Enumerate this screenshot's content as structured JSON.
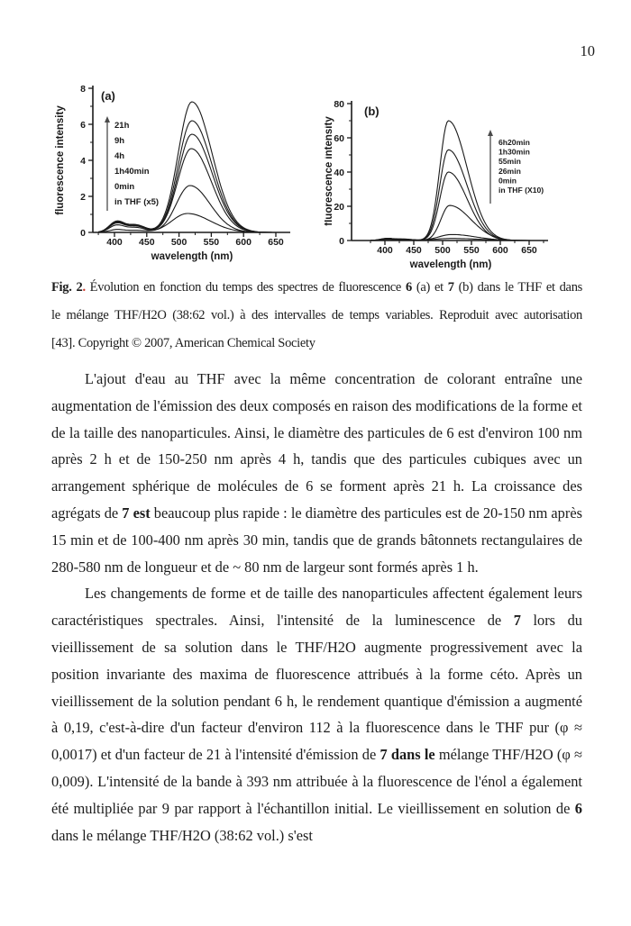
{
  "page": {
    "number": "10"
  },
  "figure": {
    "caption_lines": [
      {
        "segments": [
          {
            "t": "Fig. 2",
            "b": true
          },
          {
            "t": ".",
            "b": true,
            "c": "#cc3226"
          },
          {
            "t": " Évolution en fonction du temps des spectres de fluorescence "
          },
          {
            "t": "6",
            "b": true
          },
          {
            "t": " (a) et "
          },
          {
            "t": "7",
            "b": true
          },
          {
            "t": " (b) dans le THF et dans"
          }
        ]
      },
      {
        "segments": [
          {
            "t": "le mélange THF/H2O (38:62 vol.) à des intervalles de temps variables. Reproduit avec autorisation"
          }
        ]
      },
      {
        "segments": [
          {
            "t": "[43]. Copyright © 2007, American Chemical Society"
          }
        ]
      }
    ]
  },
  "chart_data": [
    {
      "type": "line",
      "panel_label": "(a)",
      "xlabel": "wavelength (nm)",
      "ylabel": "fluorescence intensity",
      "xlim": [
        375,
        672
      ],
      "ylim": [
        0,
        8
      ],
      "xticks": [
        400,
        450,
        500,
        550,
        600,
        650
      ],
      "yticks": [
        0,
        2,
        4,
        6,
        8
      ],
      "yminor": [
        1,
        3,
        5,
        7
      ],
      "legend": [
        "21h",
        "9h",
        "4h",
        "1h40min",
        "0min",
        "in THF (x5)"
      ],
      "legend_position": "inside-left",
      "legend_arrow": "up",
      "grid": false,
      "line_color": "#1a1a1a",
      "sigma_left_nm": 30,
      "sigma_right_nm": 44,
      "series": [
        {
          "name": "21h",
          "peak_nm": 520,
          "peak_intensity": 7.25,
          "bump_405": 0.58
        },
        {
          "name": "9h",
          "peak_nm": 520,
          "peak_intensity": 6.2,
          "bump_405": 0.54
        },
        {
          "name": "4h",
          "peak_nm": 520,
          "peak_intensity": 5.45,
          "bump_405": 0.5
        },
        {
          "name": "1h40min",
          "peak_nm": 519,
          "peak_intensity": 4.65,
          "bump_405": 0.48
        },
        {
          "name": "0min",
          "peak_nm": 517,
          "peak_intensity": 2.6,
          "bump_405": 0.38
        },
        {
          "name": "in THF (x5)",
          "peak_nm": 513,
          "peak_intensity": 1.05,
          "bump_405": 0.15,
          "sigma_left_nm": 34,
          "sigma_right_nm": 50
        }
      ]
    },
    {
      "type": "line",
      "panel_label": "(b)",
      "xlabel": "wavelength (nm)",
      "ylabel": "fluorescence intensity",
      "xlim": [
        375,
        680
      ],
      "ylim": [
        0,
        80
      ],
      "xticks": [
        400,
        450,
        500,
        550,
        600,
        650
      ],
      "yticks": [
        0,
        20,
        40,
        60,
        80
      ],
      "yminor": [
        10,
        30,
        50,
        70
      ],
      "legend": [
        "6h20min",
        "1h30min",
        "55min",
        "26min",
        "0min",
        "in THF (X10)"
      ],
      "legend_position": "inside-right",
      "legend_arrow": "up",
      "grid": false,
      "line_color": "#1a1a1a",
      "sigma_left_nm": 21,
      "sigma_right_nm": 46,
      "series": [
        {
          "name": "6h20min",
          "peak_nm": 510,
          "peak_intensity": 70,
          "bump_405": 1.2
        },
        {
          "name": "1h30min",
          "peak_nm": 510,
          "peak_intensity": 53,
          "bump_405": 1.1
        },
        {
          "name": "55min",
          "peak_nm": 510,
          "peak_intensity": 40,
          "bump_405": 1.0
        },
        {
          "name": "26min",
          "peak_nm": 512,
          "peak_intensity": 20.5,
          "bump_405": 0.9,
          "sigma_right_nm": 52
        },
        {
          "name": "0min",
          "peak_nm": 516,
          "peak_intensity": 3.5,
          "bump_405": 0.8,
          "sigma_left_nm": 32,
          "sigma_right_nm": 58
        },
        {
          "name": "in THF (X10)",
          "peak_nm": 515,
          "peak_intensity": 1.2,
          "bump_405": 0.6,
          "sigma_left_nm": 40,
          "sigma_right_nm": 70
        }
      ]
    }
  ],
  "body": {
    "paragraphs": [
      {
        "segments": [
          {
            "t": "L'ajout d'eau au THF avec la même concentration de colorant entraîne une augmentation de l'émission des deux composés en raison des modifications de la forme et de la taille des nanoparticules. Ainsi, le diamètre des particules de 6 est d'environ 100 nm après 2 h et de 150-250 nm après 4 h, tandis que des particules cubiques avec un arrangement sphérique de molécules de 6 se forment après 21 h. La croissance des agrégats de "
          },
          {
            "t": "7 est",
            "b": true
          },
          {
            "t": " beaucoup plus rapide : le diamètre des particules est de 20-150 nm après 15 min et de 100-400 nm après 30 min, tandis que de grands bâtonnets rectangulaires de 280-580 nm de longueur et de ~ 80 nm de largeur sont formés après 1 h."
          }
        ]
      },
      {
        "segments": [
          {
            "t": "Les changements de forme et de taille des nanoparticules affectent également leurs caractéristiques spectrales. Ainsi, l'intensité de la luminescence de "
          },
          {
            "t": "7",
            "b": true
          },
          {
            "t": " lors du vieillissement de sa solution dans le THF/H2O augmente progressivement avec la position invariante des maxima de fluorescence attribués à la forme céto. Après un vieillissement de la solution pendant 6 h, le rendement quantique d'émission a augmenté à 0,19, c'est-à-dire d'un facteur d'environ 112 à la fluorescence dans le THF pur (φ ≈ 0,0017) et d'un facteur de 21 à l'intensité d'émission de "
          },
          {
            "t": "7 dans le",
            "b": true
          },
          {
            "t": " mélange THF/H2O (φ ≈ 0,009). L'intensité de la bande à 393 nm attribuée à la fluorescence de l'énol a également été multipliée par 9 par rapport à l'échantillon initial. Le vieillissement en solution de "
          },
          {
            "t": "6",
            "b": true
          },
          {
            "t": " dans le mélange THF/H2O (38:62 vol.) s'est"
          }
        ]
      }
    ]
  }
}
